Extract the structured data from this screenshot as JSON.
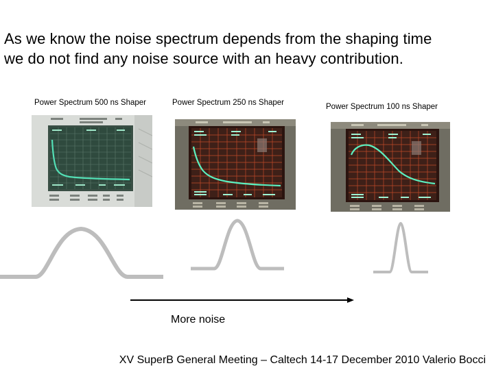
{
  "slide": {
    "heading_line1": "As we know the noise spectrum depends from the shaping time",
    "heading_line2": "we do not find any noise source with an heavy contribution.",
    "footer": "XV SuperB General Meeting – Caltech 14-17 December 2010 Valerio Bocci",
    "arrow_label": "More noise"
  },
  "panels": [
    {
      "caption": "Power Spectrum 500 ns Shaper",
      "trace_color": "#53e0b6",
      "screen_color": "#2f4a3e"
    },
    {
      "caption": "Power Spectrum 250 ns Shaper",
      "trace_color": "#5cf0c0",
      "screen_color": "#3e2018"
    },
    {
      "caption": "Power Spectrum 100 ns Shaper",
      "trace_color": "#5cf0c0",
      "screen_color": "#3e2018"
    }
  ],
  "colors": {
    "pulse_shape": "#bdbdbd",
    "arrow": "#000000"
  }
}
